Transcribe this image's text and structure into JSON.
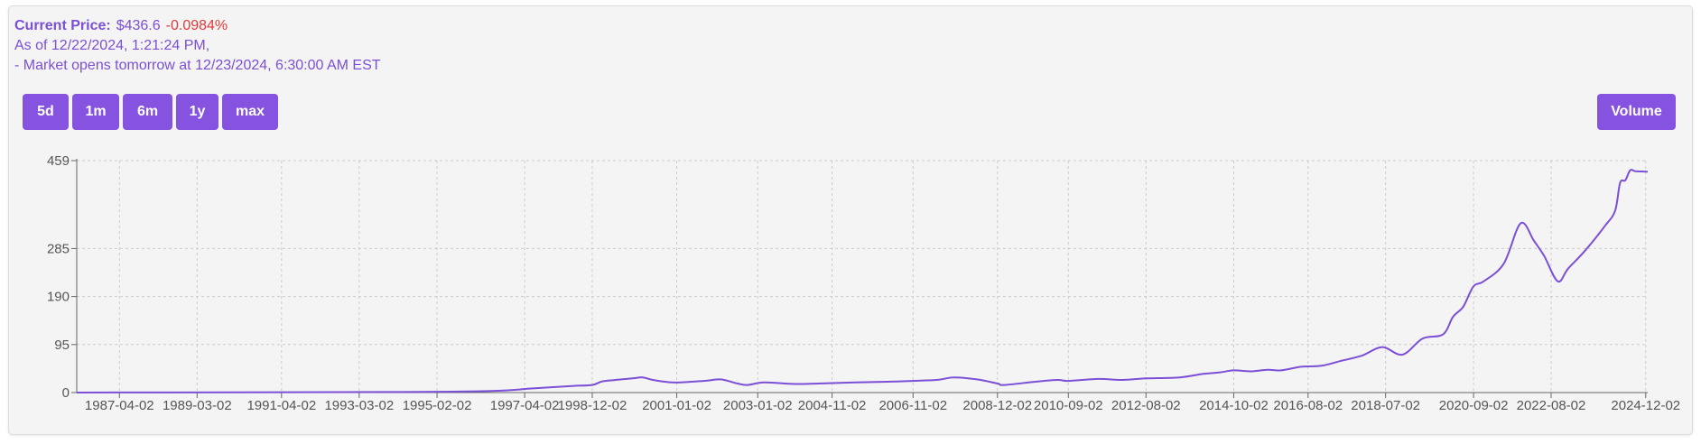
{
  "header": {
    "current_price_label": "Current Price:",
    "price": "$436.6",
    "change": "-0.0984%",
    "as_of": "As of 12/22/2024, 1:21:24 PM,",
    "market_note": "- Market opens tomorrow at 12/23/2024, 6:30:00 AM EST"
  },
  "range_buttons": [
    {
      "label": "5d"
    },
    {
      "label": "1m"
    },
    {
      "label": "6m"
    },
    {
      "label": "1y"
    },
    {
      "label": "max"
    }
  ],
  "volume_button": {
    "label": "Volume"
  },
  "colors": {
    "line": "#7b4fd6",
    "accent": "#8653e0",
    "negative": "#e03a3a"
  },
  "chart_data": {
    "type": "line",
    "title": "",
    "xlabel": "",
    "ylabel": "",
    "x_range": [
      "1986-03-13",
      "2024-12-20"
    ],
    "ylim": [
      0,
      459
    ],
    "y_ticks": [
      0,
      95,
      190,
      285,
      459
    ],
    "x_ticks": [
      "1987-04-02",
      "1989-03-02",
      "1991-04-02",
      "1993-03-02",
      "1995-02-02",
      "1997-04-02",
      "1998-12-02",
      "2001-01-02",
      "2003-01-02",
      "2004-11-02",
      "2006-11-02",
      "2008-12-02",
      "2010-09-02",
      "2012-08-02",
      "2014-10-02",
      "2016-08-02",
      "2018-07-02",
      "2020-09-02",
      "2022-08-02",
      "2024-12-02"
    ],
    "grid": true,
    "series": [
      {
        "x": [
          "1986-03-13",
          "1990-01-01",
          "1994-01-01",
          "1996-06-01",
          "1997-06-01",
          "1998-06-01",
          "1998-12-01",
          "1999-03-01",
          "1999-07-01",
          "1999-12-01",
          "2000-03-01",
          "2000-06-01",
          "2000-12-01",
          "2001-09-01",
          "2002-02-01",
          "2002-07-01",
          "2002-10-01",
          "2003-03-01",
          "2003-12-01",
          "2004-08-01",
          "2005-06-01",
          "2006-06-01",
          "2007-06-01",
          "2007-11-01",
          "2008-06-01",
          "2008-12-01",
          "2009-02-01",
          "2009-12-01",
          "2010-06-01",
          "2010-09-01",
          "2011-06-01",
          "2012-01-01",
          "2012-08-01",
          "2013-06-01",
          "2014-01-01",
          "2014-06-01",
          "2014-10-01",
          "2015-03-01",
          "2015-08-01",
          "2015-12-01",
          "2016-06-01",
          "2016-12-01",
          "2017-06-01",
          "2017-12-01",
          "2018-06-01",
          "2018-12-01",
          "2019-06-01",
          "2019-12-01",
          "2020-03-01",
          "2020-06-01",
          "2020-09-01",
          "2020-12-01",
          "2021-06-01",
          "2021-11-01",
          "2022-03-01",
          "2022-06-01",
          "2022-10-01",
          "2023-01-01",
          "2023-06-01",
          "2023-12-01",
          "2024-03-01",
          "2024-04-15",
          "2024-06-01",
          "2024-07-15",
          "2024-09-01",
          "2024-12-20"
        ],
        "values": [
          0,
          0.5,
          1,
          3,
          8,
          13,
          15,
          22,
          25,
          28,
          30,
          25,
          20,
          23,
          26,
          18,
          15,
          20,
          17,
          18,
          20,
          22,
          25,
          30,
          26,
          18,
          15,
          22,
          25,
          23,
          27,
          25,
          28,
          30,
          37,
          40,
          44,
          42,
          45,
          44,
          51,
          53,
          63,
          73,
          90,
          75,
          107,
          115,
          150,
          170,
          210,
          220,
          255,
          335,
          300,
          270,
          220,
          245,
          280,
          330,
          360,
          415,
          420,
          440,
          438,
          437
        ]
      }
    ]
  }
}
